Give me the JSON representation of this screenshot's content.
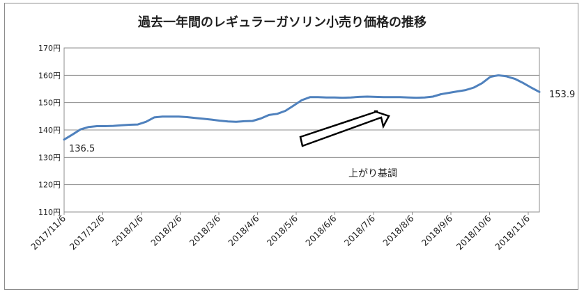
{
  "chart_data": {
    "type": "line",
    "title": "過去一年間のレギュラーガソリン小売り価格の推移",
    "xlabel": "",
    "ylabel": "",
    "ylim": [
      110,
      170
    ],
    "yticks": [
      "110円",
      "120円",
      "130円",
      "140円",
      "150円",
      "160円",
      "170円"
    ],
    "xticks": [
      "2017/11/6",
      "2017/12/6",
      "2018/1/6",
      "2018/2/6",
      "2018/3/6",
      "2018/4/6",
      "2018/5/6",
      "2018/6/6",
      "2018/7/6",
      "2018/8/6",
      "2018/9/6",
      "2018/10/6",
      "2018/11/6"
    ],
    "grid": true,
    "line_color": "#4f81bd",
    "series": [
      {
        "values": [
          136.5,
          138.3,
          140.2,
          141.1,
          141.4,
          141.4,
          141.5,
          141.7,
          141.9,
          142.0,
          143.0,
          144.6,
          144.9,
          144.9,
          144.9,
          144.7,
          144.4,
          144.1,
          143.8,
          143.4,
          143.1,
          143.0,
          143.2,
          143.3,
          144.2,
          145.5,
          145.9,
          147.0,
          148.9,
          150.9,
          152.0,
          152.0,
          151.9,
          151.9,
          151.8,
          151.9,
          152.1,
          152.2,
          152.1,
          152.0,
          152.0,
          152.0,
          151.9,
          151.8,
          151.9,
          152.2,
          153.1,
          153.6,
          154.1,
          154.6,
          155.5,
          157.1,
          159.4,
          160.0,
          159.6,
          158.7,
          157.2,
          155.5,
          153.9
        ]
      }
    ],
    "annotations": {
      "start_value": "136.5",
      "end_value": "153.9",
      "trend_text": "上がり基調"
    }
  }
}
